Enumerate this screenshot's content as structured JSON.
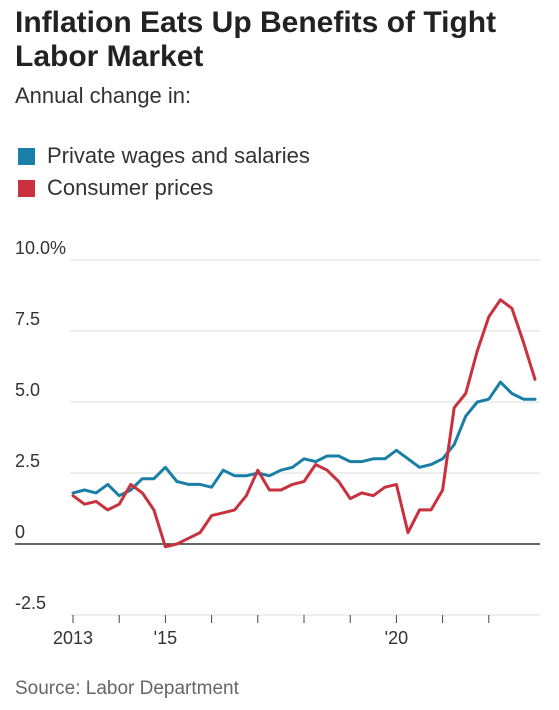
{
  "title": "Inflation Eats Up Benefits of Tight Labor Market",
  "subtitle": "Annual change in:",
  "source": "Source: Labor Department",
  "colors": {
    "wages": "#1a7fa7",
    "prices": "#c8313d",
    "grid": "#dddddd",
    "zero": "#333333",
    "text": "#333333"
  },
  "legend": [
    {
      "label": "Private wages and salaries",
      "color": "#1a7fa7"
    },
    {
      "label": "Consumer prices",
      "color": "#c8313d"
    }
  ],
  "chart_data": {
    "type": "line",
    "xlim": [
      2013.0,
      2022.5
    ],
    "ylim": [
      -2.5,
      10.0
    ],
    "yticks": [
      {
        "value": 10.0,
        "label": "10.0%"
      },
      {
        "value": 7.5,
        "label": "7.5"
      },
      {
        "value": 5.0,
        "label": "5.0"
      },
      {
        "value": 2.5,
        "label": "2.5"
      },
      {
        "value": 0,
        "label": "0"
      },
      {
        "value": -2.5,
        "label": "-2.5"
      }
    ],
    "xticks": [
      {
        "value": 2013.0,
        "label": "2013"
      },
      {
        "value": 2014.0,
        "label": ""
      },
      {
        "value": 2015.0,
        "label": "'15"
      },
      {
        "value": 2016.0,
        "label": ""
      },
      {
        "value": 2017.0,
        "label": ""
      },
      {
        "value": 2018.0,
        "label": ""
      },
      {
        "value": 2019.0,
        "label": ""
      },
      {
        "value": 2020.0,
        "label": "'20"
      },
      {
        "value": 2021.0,
        "label": ""
      },
      {
        "value": 2022.0,
        "label": ""
      }
    ],
    "series": [
      {
        "name": "Private wages and salaries",
        "color": "#1a7fa7",
        "points": [
          [
            2013.0,
            1.8
          ],
          [
            2013.25,
            1.9
          ],
          [
            2013.5,
            1.8
          ],
          [
            2013.75,
            2.1
          ],
          [
            2014.0,
            1.7
          ],
          [
            2014.25,
            1.9
          ],
          [
            2014.5,
            2.3
          ],
          [
            2014.75,
            2.3
          ],
          [
            2015.0,
            2.7
          ],
          [
            2015.25,
            2.2
          ],
          [
            2015.5,
            2.1
          ],
          [
            2015.75,
            2.1
          ],
          [
            2016.0,
            2.0
          ],
          [
            2016.25,
            2.6
          ],
          [
            2016.5,
            2.4
          ],
          [
            2016.75,
            2.4
          ],
          [
            2017.0,
            2.5
          ],
          [
            2017.25,
            2.4
          ],
          [
            2017.5,
            2.6
          ],
          [
            2017.75,
            2.7
          ],
          [
            2018.0,
            3.0
          ],
          [
            2018.25,
            2.9
          ],
          [
            2018.5,
            3.1
          ],
          [
            2018.75,
            3.1
          ],
          [
            2019.0,
            2.9
          ],
          [
            2019.25,
            2.9
          ],
          [
            2019.5,
            3.0
          ],
          [
            2019.75,
            3.0
          ],
          [
            2020.0,
            3.3
          ],
          [
            2020.25,
            3.0
          ],
          [
            2020.5,
            2.7
          ],
          [
            2020.75,
            2.8
          ],
          [
            2021.0,
            3.0
          ],
          [
            2021.25,
            3.5
          ],
          [
            2021.5,
            4.5
          ],
          [
            2021.75,
            5.0
          ],
          [
            2022.0,
            5.1
          ],
          [
            2022.25,
            5.7
          ],
          [
            2022.5,
            5.3
          ],
          [
            2022.75,
            5.1
          ],
          [
            2023.0,
            5.1
          ]
        ]
      },
      {
        "name": "Consumer prices",
        "color": "#c8313d",
        "points": [
          [
            2013.0,
            1.7
          ],
          [
            2013.25,
            1.4
          ],
          [
            2013.5,
            1.5
          ],
          [
            2013.75,
            1.2
          ],
          [
            2014.0,
            1.4
          ],
          [
            2014.25,
            2.1
          ],
          [
            2014.5,
            1.8
          ],
          [
            2014.75,
            1.2
          ],
          [
            2015.0,
            -0.1
          ],
          [
            2015.25,
            0.0
          ],
          [
            2015.5,
            0.2
          ],
          [
            2015.75,
            0.4
          ],
          [
            2016.0,
            1.0
          ],
          [
            2016.25,
            1.1
          ],
          [
            2016.5,
            1.2
          ],
          [
            2016.75,
            1.7
          ],
          [
            2017.0,
            2.6
          ],
          [
            2017.25,
            1.9
          ],
          [
            2017.5,
            1.9
          ],
          [
            2017.75,
            2.1
          ],
          [
            2018.0,
            2.2
          ],
          [
            2018.25,
            2.8
          ],
          [
            2018.5,
            2.6
          ],
          [
            2018.75,
            2.2
          ],
          [
            2019.0,
            1.6
          ],
          [
            2019.25,
            1.8
          ],
          [
            2019.5,
            1.7
          ],
          [
            2019.75,
            2.0
          ],
          [
            2020.0,
            2.1
          ],
          [
            2020.25,
            0.4
          ],
          [
            2020.5,
            1.2
          ],
          [
            2020.75,
            1.2
          ],
          [
            2021.0,
            1.9
          ],
          [
            2021.25,
            4.8
          ],
          [
            2021.5,
            5.3
          ],
          [
            2021.75,
            6.8
          ],
          [
            2022.0,
            8.0
          ],
          [
            2022.25,
            8.6
          ],
          [
            2022.5,
            8.3
          ],
          [
            2022.75,
            7.1
          ],
          [
            2023.0,
            5.8
          ]
        ]
      }
    ]
  }
}
